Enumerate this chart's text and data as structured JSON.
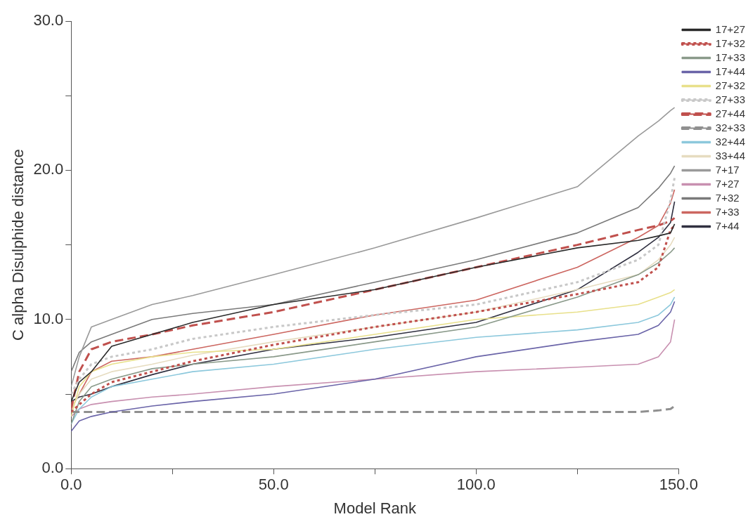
{
  "chart_data": {
    "type": "line",
    "xlabel": "Model Rank",
    "ylabel": "C alpha Disulphide distance",
    "x": [
      0,
      2,
      5,
      10,
      20,
      30,
      50,
      75,
      100,
      125,
      140,
      145,
      148,
      149
    ],
    "xlim": [
      0,
      150
    ],
    "xticks": [
      {
        "value": 0,
        "label": "0.0"
      },
      {
        "value": 25,
        "label": null
      },
      {
        "value": 50,
        "label": "50.0"
      },
      {
        "value": 75,
        "label": null
      },
      {
        "value": 100,
        "label": "100.0"
      },
      {
        "value": 125,
        "label": null
      },
      {
        "value": 150,
        "label": "150.0"
      }
    ],
    "ylim": [
      0,
      30
    ],
    "yticks": [
      {
        "value": 0,
        "label": "0.0"
      },
      {
        "value": 5,
        "label": null
      },
      {
        "value": 10,
        "label": "10.0"
      },
      {
        "value": 15,
        "label": null
      },
      {
        "value": 20,
        "label": "20.0"
      },
      {
        "value": 25,
        "label": null
      },
      {
        "value": 30,
        "label": "30.0"
      }
    ],
    "grid": false,
    "legend": "right",
    "marker": "none",
    "series": [
      {
        "name": "17+27",
        "color": "#2a2a2a",
        "line_style": "solid",
        "values": [
          4.5,
          5.8,
          6.5,
          8.2,
          9,
          9.8,
          11,
          12,
          13.5,
          14.8,
          15.3,
          15.6,
          15.8,
          16.4
        ]
      },
      {
        "name": "17+32",
        "color": "#c0504d",
        "line_style": "dotted",
        "values": [
          3.8,
          4.3,
          5,
          5.8,
          6.5,
          7.2,
          8.3,
          9.5,
          10.5,
          11.7,
          12.5,
          13.5,
          16,
          16.3
        ]
      },
      {
        "name": "17+33",
        "color": "#8a9a8a",
        "line_style": "solid",
        "values": [
          3,
          4.5,
          5.5,
          6,
          6.7,
          7,
          7.5,
          8.5,
          9.5,
          11.5,
          13,
          13.8,
          14.5,
          14.8
        ]
      },
      {
        "name": "17+44",
        "color": "#6a64a8",
        "line_style": "solid",
        "values": [
          2.5,
          3.2,
          3.5,
          3.8,
          4.2,
          4.5,
          5,
          6,
          7.5,
          8.5,
          9,
          9.6,
          10.5,
          11.2
        ]
      },
      {
        "name": "27+32",
        "color": "#e8e08a",
        "line_style": "solid",
        "values": [
          3.5,
          5.5,
          6.5,
          7,
          7.5,
          7.8,
          8,
          9,
          10,
          10.5,
          11,
          11.5,
          11.8,
          12
        ]
      },
      {
        "name": "27+33",
        "color": "#c8c8c8",
        "line_style": "dotted",
        "values": [
          5,
          6,
          7,
          7.5,
          8,
          8.7,
          9.5,
          10.3,
          11,
          12.5,
          14,
          15,
          18,
          19.5
        ]
      },
      {
        "name": "27+44",
        "color": "#c0504d",
        "line_style": "dashed",
        "values": [
          4,
          6.5,
          8,
          8.5,
          9,
          9.6,
          10.5,
          12,
          13.5,
          15,
          16,
          16.3,
          16.6,
          16.8
        ]
      },
      {
        "name": "32+33",
        "color": "#909090",
        "line_style": "dashed",
        "values": [
          3.8,
          3.8,
          3.8,
          3.8,
          3.8,
          3.8,
          3.8,
          3.8,
          3.8,
          3.8,
          3.8,
          3.9,
          4,
          4.2
        ]
      },
      {
        "name": "32+44",
        "color": "#8cc8dc",
        "line_style": "solid",
        "values": [
          3,
          4,
          4.8,
          5.5,
          6,
          6.5,
          7,
          8,
          8.8,
          9.3,
          9.8,
          10.3,
          11,
          11.5
        ]
      },
      {
        "name": "33+44",
        "color": "#e6dcc0",
        "line_style": "solid",
        "values": [
          4,
          5,
          6,
          6.5,
          7,
          7.6,
          8.5,
          9.5,
          10.5,
          12,
          13,
          14,
          15,
          15.5
        ]
      },
      {
        "name": "7+17",
        "color": "#9a9a9a",
        "line_style": "solid",
        "values": [
          5.5,
          7.5,
          9.5,
          10,
          11,
          11.6,
          13,
          14.8,
          16.8,
          18.9,
          22.3,
          23.3,
          24,
          24.2
        ]
      },
      {
        "name": "7+27",
        "color": "#c890b0",
        "line_style": "solid",
        "values": [
          3.5,
          4,
          4.3,
          4.5,
          4.8,
          5,
          5.5,
          6,
          6.5,
          6.8,
          7,
          7.5,
          8.5,
          10
        ]
      },
      {
        "name": "7+32",
        "color": "#7a7a7a",
        "line_style": "solid",
        "values": [
          6.5,
          7.8,
          8.5,
          9,
          10,
          10.4,
          11,
          12.5,
          14,
          15.8,
          17.5,
          18.8,
          19.8,
          20.3
        ]
      },
      {
        "name": "7+33",
        "color": "#cc6660",
        "line_style": "solid",
        "values": [
          4,
          5,
          6.5,
          7.2,
          7.5,
          8,
          9,
          10.3,
          11.3,
          13.5,
          15.5,
          16.3,
          17.8,
          18.7
        ]
      },
      {
        "name": "7+44",
        "color": "#303040",
        "line_style": "solid",
        "values": [
          4.5,
          4.8,
          5,
          5.5,
          6.3,
          7,
          8,
          8.8,
          9.8,
          12,
          14.5,
          15.5,
          16.5,
          17.9
        ]
      }
    ]
  }
}
